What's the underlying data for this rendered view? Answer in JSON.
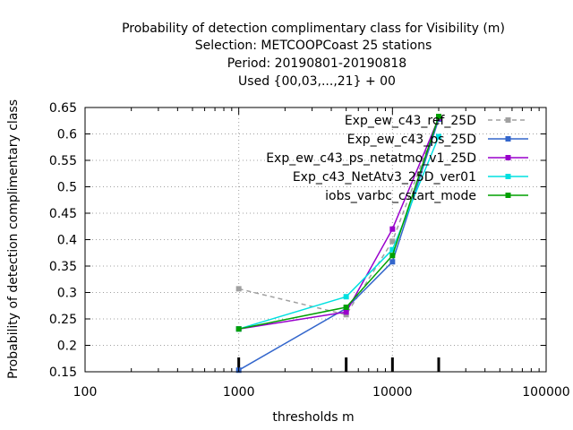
{
  "chart_data": {
    "type": "line",
    "title_lines": [
      "Probability of detection complimentary class  for Visibility (m)",
      "Selection: METCOOPCoast     25 stations",
      "Period: 20190801-20190818",
      "Used {00,03,...,21} + 00"
    ],
    "xlabel": "thresholds m",
    "ylabel": "Probability of detection complimentary class",
    "x_scale": "log",
    "xlim": [
      100,
      100000
    ],
    "ylim": [
      0.15,
      0.65
    ],
    "x_ticks": [
      100,
      1000,
      10000,
      100000
    ],
    "x_tick_labels": [
      "100",
      "1000",
      "10000",
      "100000"
    ],
    "y_ticks": [
      0.15,
      0.2,
      0.25,
      0.3,
      0.35,
      0.4,
      0.45,
      0.5,
      0.55,
      0.6,
      0.65
    ],
    "y_tick_labels": [
      "0.15",
      "0.2",
      "0.25",
      "0.3",
      "0.35",
      "0.4",
      "0.45",
      "0.5",
      "0.55",
      "0.6",
      "0.65"
    ],
    "grid": true,
    "legend_position": "top-right",
    "x": [
      1000,
      5000,
      10000,
      20000
    ],
    "series": [
      {
        "name": "Exp_ew_c43_ref_25D",
        "color": "#a0a0a0",
        "dashed": true,
        "values": [
          0.307,
          0.258,
          0.397,
          0.63
        ]
      },
      {
        "name": "Exp_ew_c43_ps_25D",
        "color": "#3366cc",
        "dashed": false,
        "values": [
          0.153,
          0.27,
          0.358,
          0.628
        ]
      },
      {
        "name": "Exp_ew_c43_ps_netatmo_v1_25D",
        "color": "#9900cc",
        "dashed": false,
        "values": [
          0.231,
          0.263,
          0.42,
          0.63
        ]
      },
      {
        "name": "Exp_c43_NetAtv3_25D_ver01",
        "color": "#00e0e0",
        "dashed": false,
        "values": [
          0.231,
          0.292,
          0.381,
          0.595
        ]
      },
      {
        "name": "iobs_varbc_cstart_mode",
        "color": "#00a000",
        "dashed": false,
        "values": [
          0.231,
          0.272,
          0.37,
          0.633
        ]
      }
    ],
    "threshold_markers": [
      1000,
      5000,
      10000,
      20000
    ]
  }
}
